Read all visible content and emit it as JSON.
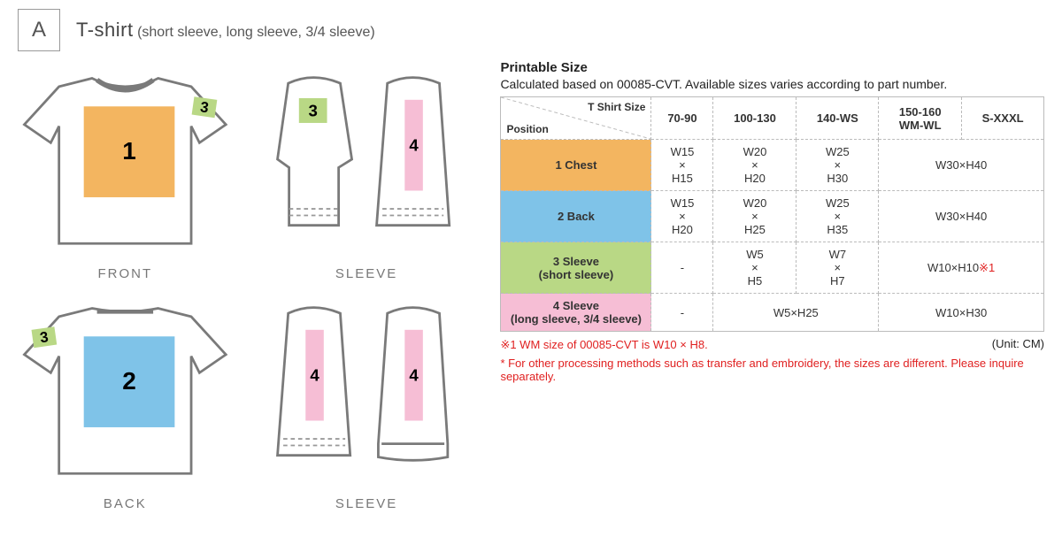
{
  "header": {
    "letter": "A",
    "title": "T-shirt",
    "subtitle": "(short sleeve, long sleeve, 3/4 sleeve)"
  },
  "colors": {
    "chest": "#f3b560",
    "back": "#7fc3e8",
    "sleeve_short": "#b9d885",
    "sleeve_long": "#f6bed5",
    "outline": "#7a7a7a",
    "dashed": "#999999",
    "red": "#e02020"
  },
  "diagrams": {
    "front": {
      "label": "FRONT",
      "zone_num": "1",
      "tag_num": "3"
    },
    "back": {
      "label": "BACK",
      "zone_num": "2",
      "tag_num": "3"
    },
    "sleeve_top": {
      "label": "SLEEVE",
      "zone_num": "4",
      "tag_num": "3"
    },
    "sleeve_bottom": {
      "label": "SLEEVE",
      "zone_num_left": "4",
      "zone_num_right": "4"
    }
  },
  "table": {
    "heading": "Printable Size",
    "note": "Calculated based on 00085-CVT. Available sizes varies according to part number.",
    "corner": {
      "top": "T Shirt Size",
      "bottom": "Position"
    },
    "size_cols": [
      "70-90",
      "100-130",
      "140-WS",
      "150-160\nWM-WL",
      "S-XXXL"
    ],
    "rows": [
      {
        "label": "1 Chest",
        "color": "#f3b560",
        "cells": [
          "W15\n×\nH15",
          "W20\n×\nH20",
          "W25\n×\nH30",
          {
            "span": 2,
            "text": "W30×H40"
          }
        ]
      },
      {
        "label": "2 Back",
        "color": "#7fc3e8",
        "cells": [
          "W15\n×\nH20",
          "W20\n×\nH25",
          "W25\n×\nH35",
          {
            "span": 2,
            "text": "W30×H40"
          }
        ]
      },
      {
        "label": "3 Sleeve\n(short  sleeve)",
        "color": "#b9d885",
        "cells": [
          "-",
          "W5\n×\nH5",
          "W7\n×\nH7",
          {
            "span": 2,
            "text": "W10×H10",
            "suffix_red": "※1"
          }
        ]
      },
      {
        "label": "4 Sleeve\n(long sleeve, 3/4 sleeve)",
        "color": "#f6bed5",
        "cells": [
          "-",
          {
            "span": 2,
            "text": "W5×H25"
          },
          {
            "span": 2,
            "text": "W10×H30"
          }
        ]
      }
    ],
    "unit": "(Unit: CM)",
    "footnote1": "※1 WM size of 00085-CVT is W10 × H8.",
    "footnote2": "* For other processing methods such as transfer and embroidery, the sizes are different. Please inquire separately."
  }
}
